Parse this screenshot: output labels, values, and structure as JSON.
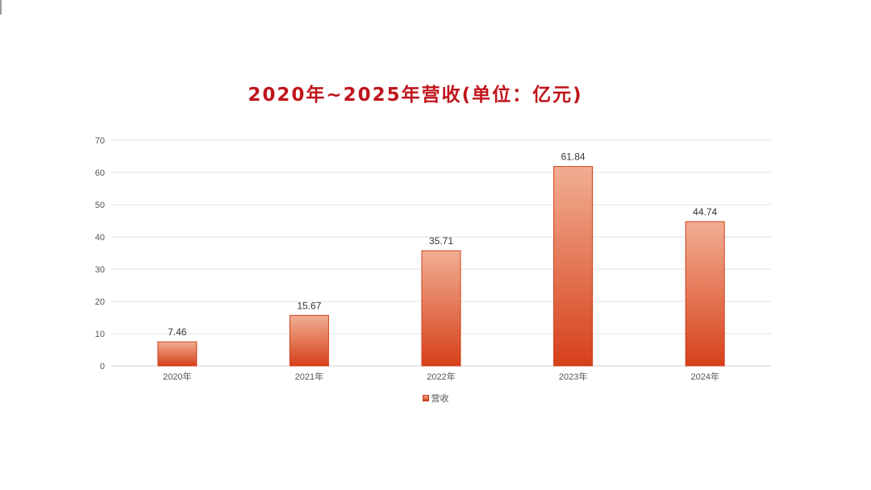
{
  "chart_data": {
    "type": "bar",
    "title": "2020年~2025年营收(单位：亿元)",
    "categories": [
      "2020年",
      "2021年",
      "2022年",
      "2023年",
      "2024年"
    ],
    "series": [
      {
        "name": "营收",
        "values": [
          7.46,
          15.67,
          35.71,
          61.84,
          44.74
        ],
        "value_labels": [
          "7.46",
          "15.67",
          "35.71",
          "61.84",
          "44.74"
        ]
      }
    ],
    "y_ticks": [
      "0",
      "10",
      "20",
      "30",
      "40",
      "50",
      "60",
      "70"
    ],
    "ylim": [
      0,
      70
    ],
    "grid": true,
    "legend_position": "bottom",
    "colors": {
      "bar_top": "#f1ae92",
      "bar_bottom": "#d6401a",
      "bar_border": "#cf3d19",
      "title": "#c0141b",
      "grid": "#e3e3e3"
    }
  }
}
